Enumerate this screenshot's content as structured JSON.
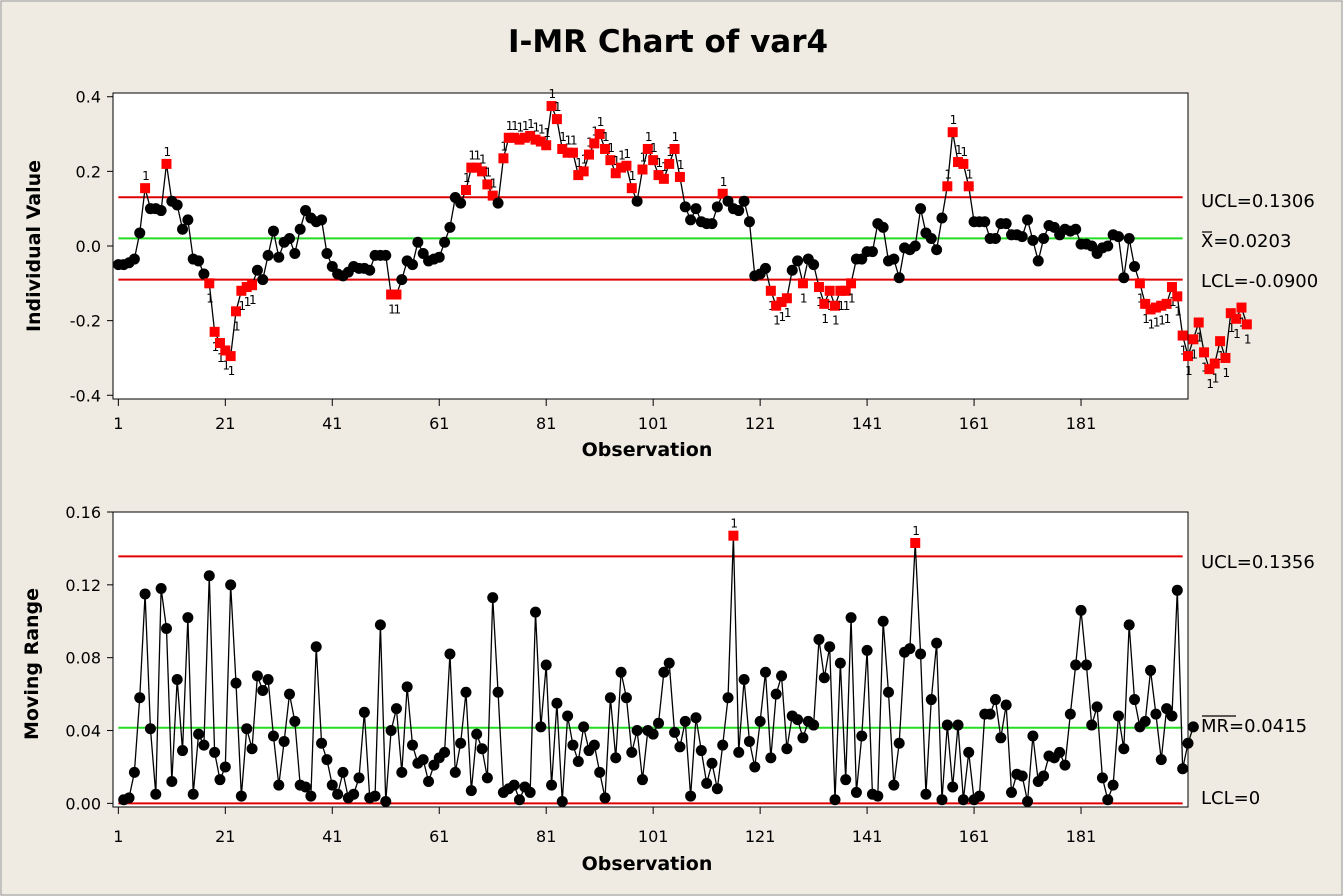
{
  "chart_data": [
    {
      "type": "line",
      "title": "I-MR Chart of var4",
      "xlabel": "Observation",
      "ylabel": "Individual Value",
      "x_ticks": [
        "1",
        "21",
        "41",
        "61",
        "81",
        "101",
        "121",
        "141",
        "161",
        "181"
      ],
      "y_ticks": [
        "-0.4",
        "-0.2",
        "0.0",
        "0.2",
        "0.4"
      ],
      "ylim": [
        -0.41,
        0.41
      ],
      "xlim": [
        0,
        201
      ],
      "limits": {
        "ucl": 0.1306,
        "center": 0.0203,
        "lcl": -0.09
      },
      "limit_labels": {
        "ucl": "UCL=0.1306",
        "center": "X=0.0203",
        "lcl": "LCL=-0.0900"
      },
      "flag_label": "1",
      "colors": {
        "ucl": "#e00000",
        "lcl": "#e00000",
        "center": "#22dd22",
        "point": "#000000",
        "flagged_point": "#ff0000"
      },
      "series": [
        {
          "values": [
            -0.05,
            -0.05,
            -0.045,
            -0.035,
            0.035,
            0.155,
            0.1,
            0.1,
            0.095,
            0.22,
            0.12,
            0.11,
            0.045,
            0.07,
            -0.035,
            -0.04,
            -0.075,
            -0.1,
            -0.23,
            -0.26,
            -0.28,
            -0.295,
            -0.175,
            -0.12,
            -0.11,
            -0.105,
            -0.065,
            -0.09,
            -0.025,
            0.04,
            -0.03,
            0.01,
            0.02,
            -0.02,
            0.045,
            0.095,
            0.075,
            0.065,
            0.07,
            -0.02,
            -0.055,
            -0.075,
            -0.08,
            -0.07,
            -0.055,
            -0.06,
            -0.06,
            -0.065,
            -0.025,
            -0.025,
            -0.025,
            -0.13,
            -0.13,
            -0.09,
            -0.04,
            -0.05,
            0.01,
            -0.02,
            -0.04,
            -0.035,
            -0.03,
            0.01,
            0.05,
            0.13,
            0.115,
            0.15,
            0.21,
            0.21,
            0.2,
            0.165,
            0.135,
            0.115,
            0.235,
            0.29,
            0.29,
            0.285,
            0.29,
            0.295,
            0.285,
            0.28,
            0.27,
            0.375,
            0.34,
            0.26,
            0.25,
            0.25,
            0.19,
            0.2,
            0.245,
            0.275,
            0.3,
            0.26,
            0.23,
            0.195,
            0.21,
            0.215,
            0.155,
            0.12,
            0.205,
            0.26,
            0.23,
            0.19,
            0.18,
            0.22,
            0.26,
            0.185,
            0.105,
            0.07,
            0.1,
            0.065,
            0.06,
            0.06,
            0.105,
            0.14,
            0.12,
            0.1,
            0.095,
            0.12,
            0.065,
            -0.08,
            -0.075,
            -0.06,
            -0.12,
            -0.16,
            -0.15,
            -0.14,
            -0.065,
            -0.04,
            -0.1,
            -0.035,
            -0.05,
            -0.11,
            -0.155,
            -0.12,
            -0.16,
            -0.12,
            -0.12,
            -0.1,
            -0.035,
            -0.035,
            -0.015,
            -0.015,
            0.06,
            0.05,
            -0.04,
            -0.035,
            -0.085,
            -0.005,
            -0.01,
            0.0,
            0.1,
            0.035,
            0.02,
            -0.01,
            0.075,
            0.16,
            0.305,
            0.225,
            0.22,
            0.16,
            0.065,
            0.065,
            0.065,
            0.02,
            0.02,
            0.06,
            0.06,
            0.03,
            0.03,
            0.025,
            0.07,
            0.015,
            -0.04,
            0.02,
            0.055,
            0.05,
            0.03,
            0.045,
            0.04,
            0.045,
            0.005,
            0.005,
            0.0,
            -0.02,
            -0.005,
            0.0,
            0.03,
            0.025,
            -0.085,
            0.02,
            -0.055,
            -0.1,
            -0.155,
            -0.17,
            -0.165,
            -0.16,
            -0.155,
            -0.11,
            -0.135,
            -0.24,
            -0.295,
            -0.25,
            -0.205,
            -0.285,
            -0.33,
            -0.315,
            -0.255,
            -0.3,
            -0.18,
            -0.195,
            -0.165,
            -0.21
          ]
        }
      ]
    },
    {
      "type": "line",
      "xlabel": "Observation",
      "ylabel": "Moving Range",
      "x_ticks": [
        "1",
        "21",
        "41",
        "61",
        "81",
        "101",
        "121",
        "141",
        "161",
        "181"
      ],
      "y_ticks": [
        "0.00",
        "0.04",
        "0.08",
        "0.12",
        "0.16"
      ],
      "ylim": [
        -0.002,
        0.16
      ],
      "xlim": [
        0,
        201
      ],
      "limits": {
        "ucl": 0.1356,
        "center": 0.0415,
        "lcl": 0
      },
      "limit_labels": {
        "ucl": "UCL=0.1356",
        "center": "MR=0.0415",
        "lcl": "LCL=0"
      },
      "flag_label": "1",
      "series": [
        {
          "values": [
            0.002,
            0.003,
            0.017,
            0.058,
            0.115,
            0.041,
            0.005,
            0.118,
            0.096,
            0.012,
            0.068,
            0.029,
            0.102,
            0.005,
            0.038,
            0.032,
            0.125,
            0.028,
            0.013,
            0.02,
            0.12,
            0.066,
            0.004,
            0.041,
            0.03,
            0.07,
            0.062,
            0.068,
            0.037,
            0.01,
            0.034,
            0.06,
            0.045,
            0.01,
            0.009,
            0.004,
            0.086,
            0.033,
            0.024,
            0.01,
            0.005,
            0.017,
            0.003,
            0.005,
            0.014,
            0.05,
            0.003,
            0.004,
            0.098,
            0.001,
            0.04,
            0.052,
            0.017,
            0.064,
            0.032,
            0.022,
            0.024,
            0.012,
            0.021,
            0.025,
            0.028,
            0.082,
            0.017,
            0.033,
            0.061,
            0.007,
            0.038,
            0.03,
            0.014,
            0.113,
            0.061,
            0.006,
            0.008,
            0.01,
            0.002,
            0.009,
            0.006,
            0.105,
            0.042,
            0.076,
            0.01,
            0.055,
            0.001,
            0.048,
            0.032,
            0.023,
            0.042,
            0.029,
            0.032,
            0.017,
            0.003,
            0.058,
            0.025,
            0.072,
            0.058,
            0.028,
            0.04,
            0.013,
            0.04,
            0.038,
            0.044,
            0.072,
            0.077,
            0.039,
            0.031,
            0.045,
            0.004,
            0.047,
            0.029,
            0.011,
            0.022,
            0.008,
            0.032,
            0.058,
            0.147,
            0.028,
            0.068,
            0.034,
            0.02,
            0.045,
            0.072,
            0.025,
            0.06,
            0.07,
            0.03,
            0.048,
            0.046,
            0.036,
            0.045,
            0.043,
            0.09,
            0.069,
            0.086,
            0.002,
            0.077,
            0.013,
            0.102,
            0.006,
            0.037,
            0.084,
            0.005,
            0.004,
            0.1,
            0.061,
            0.01,
            0.033,
            0.083,
            0.085,
            0.143,
            0.082,
            0.005,
            0.057,
            0.088,
            0.002,
            0.043,
            0.009,
            0.043,
            0.002,
            0.028,
            0.002,
            0.004,
            0.049,
            0.049,
            0.057,
            0.036,
            0.054,
            0.006,
            0.016,
            0.015,
            0.001,
            0.037,
            0.012,
            0.015,
            0.026,
            0.025,
            0.028,
            0.021,
            0.049,
            0.076,
            0.106,
            0.076,
            0.043,
            0.053,
            0.014,
            0.002,
            0.01,
            0.048,
            0.03,
            0.098,
            0.057,
            0.042,
            0.045,
            0.073,
            0.049,
            0.024,
            0.052,
            0.048,
            0.117,
            0.019,
            0.033,
            0.042
          ]
        }
      ]
    }
  ]
}
